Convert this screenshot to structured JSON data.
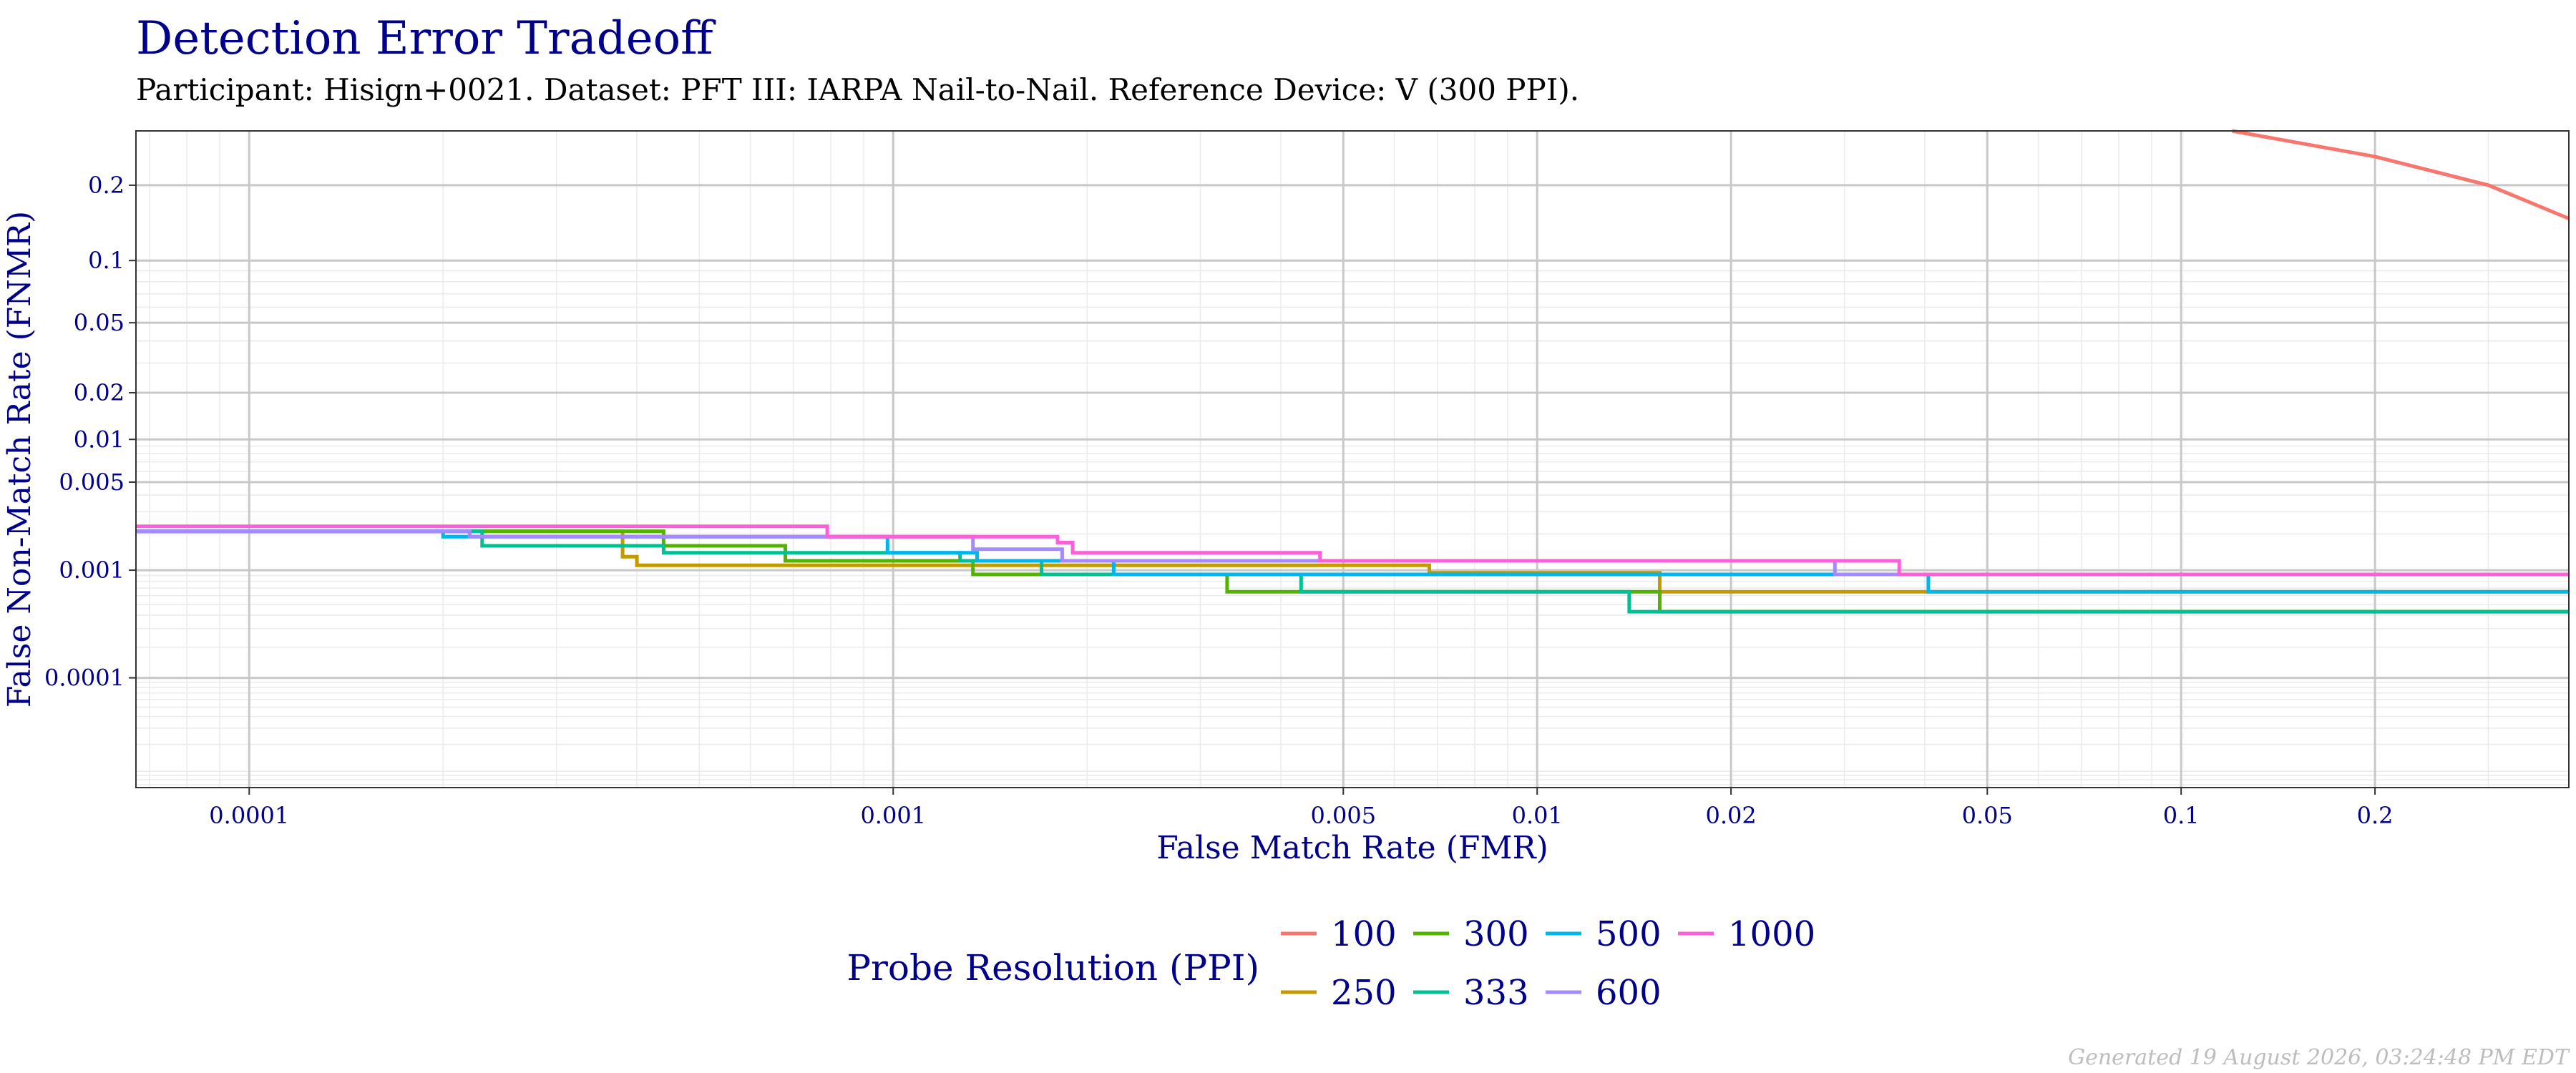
{
  "chart_data": {
    "type": "line",
    "title": "Detection Error Tradeoff",
    "subtitle": "Participant: Hisign+0021. Dataset: PFT III: IARPA Nail-to-Nail. Reference Device: V (300 PPI).",
    "xlabel": "False Match Rate (FMR)",
    "ylabel": "False Non-Match Rate (FNMR)",
    "x_scale": "log",
    "y_scale": "probit",
    "xlim": [
      6.67e-05,
      0.4
    ],
    "ylim": [
      6.5e-06,
      0.3
    ],
    "x_ticks": [
      {
        "value": 0.0001,
        "label": "0.0001"
      },
      {
        "value": 0.001,
        "label": "0.001"
      },
      {
        "value": 0.005,
        "label": "0.005"
      },
      {
        "value": 0.01,
        "label": "0.01"
      },
      {
        "value": 0.02,
        "label": "0.02"
      },
      {
        "value": 0.05,
        "label": "0.05"
      },
      {
        "value": 0.1,
        "label": "0.1"
      },
      {
        "value": 0.2,
        "label": "0.2"
      }
    ],
    "y_ticks": [
      {
        "value": 0.2,
        "label": "0.2"
      },
      {
        "value": 0.1,
        "label": "0.1"
      },
      {
        "value": 0.05,
        "label": "0.05"
      },
      {
        "value": 0.02,
        "label": "0.02"
      },
      {
        "value": 0.01,
        "label": "0.01"
      },
      {
        "value": 0.005,
        "label": "0.005"
      },
      {
        "value": 0.001,
        "label": "0.001"
      },
      {
        "value": 0.0001,
        "label": "0.0001"
      }
    ],
    "grid": true,
    "legend_title": "Probe Resolution (PPI)",
    "legend_position": "bottom",
    "series": [
      {
        "name": "100",
        "color": "#F8766D",
        "points": [
          [
            0.12,
            0.3
          ],
          [
            0.2,
            0.25
          ],
          [
            0.3,
            0.2
          ],
          [
            0.4,
            0.15
          ]
        ]
      },
      {
        "name": "250",
        "color": "#C49A00",
        "points": [
          [
            6.67e-05,
            0.0021
          ],
          [
            0.00038,
            0.0021
          ],
          [
            0.00038,
            0.0013
          ],
          [
            0.0004,
            0.0013
          ],
          [
            0.0004,
            0.0011
          ],
          [
            0.0068,
            0.0011
          ],
          [
            0.0068,
            0.00095
          ],
          [
            0.0155,
            0.00095
          ],
          [
            0.0155,
            0.00065
          ],
          [
            0.0405,
            0.00065
          ],
          [
            0.4,
            0.00065
          ]
        ]
      },
      {
        "name": "300",
        "color": "#53B400",
        "points": [
          [
            6.67e-05,
            0.0021
          ],
          [
            0.00044,
            0.0021
          ],
          [
            0.00044,
            0.0016
          ],
          [
            0.00068,
            0.0016
          ],
          [
            0.00068,
            0.0012
          ],
          [
            0.00133,
            0.0012
          ],
          [
            0.00133,
            0.00092
          ],
          [
            0.0033,
            0.00092
          ],
          [
            0.0033,
            0.00065
          ],
          [
            0.0155,
            0.00065
          ],
          [
            0.0155,
            0.00043
          ],
          [
            0.4,
            0.00043
          ]
        ]
      },
      {
        "name": "333",
        "color": "#00C094",
        "points": [
          [
            6.67e-05,
            0.0021
          ],
          [
            0.00023,
            0.0021
          ],
          [
            0.00023,
            0.0016
          ],
          [
            0.00044,
            0.0016
          ],
          [
            0.00044,
            0.0014
          ],
          [
            0.00127,
            0.0014
          ],
          [
            0.00127,
            0.0012
          ],
          [
            0.0017,
            0.0012
          ],
          [
            0.0017,
            0.00092
          ],
          [
            0.0043,
            0.00092
          ],
          [
            0.0043,
            0.00065
          ],
          [
            0.0139,
            0.00065
          ],
          [
            0.0139,
            0.00043
          ],
          [
            0.4,
            0.00043
          ]
        ]
      },
      {
        "name": "500",
        "color": "#00B6EB",
        "points": [
          [
            6.67e-05,
            0.0021
          ],
          [
            0.0002,
            0.0021
          ],
          [
            0.0002,
            0.0019
          ],
          [
            0.00098,
            0.0019
          ],
          [
            0.00098,
            0.0014
          ],
          [
            0.00135,
            0.0014
          ],
          [
            0.00135,
            0.0012
          ],
          [
            0.0022,
            0.0012
          ],
          [
            0.0022,
            0.00092
          ],
          [
            0.0405,
            0.00092
          ],
          [
            0.0405,
            0.00065
          ],
          [
            0.4,
            0.00065
          ]
        ]
      },
      {
        "name": "600",
        "color": "#A58AFF",
        "points": [
          [
            6.67e-05,
            0.0021
          ],
          [
            0.00022,
            0.0021
          ],
          [
            0.00022,
            0.0019
          ],
          [
            0.00133,
            0.0019
          ],
          [
            0.00133,
            0.0015
          ],
          [
            0.00183,
            0.0015
          ],
          [
            0.00183,
            0.0012
          ],
          [
            0.029,
            0.0012
          ],
          [
            0.029,
            0.00092
          ],
          [
            0.4,
            0.00092
          ]
        ]
      },
      {
        "name": "1000",
        "color": "#FB61D7",
        "points": [
          [
            6.67e-05,
            0.0023
          ],
          [
            0.00079,
            0.0023
          ],
          [
            0.00079,
            0.0019
          ],
          [
            0.0018,
            0.0019
          ],
          [
            0.0018,
            0.0017
          ],
          [
            0.0019,
            0.0017
          ],
          [
            0.0019,
            0.0014
          ],
          [
            0.0046,
            0.0014
          ],
          [
            0.0046,
            0.0012
          ],
          [
            0.0365,
            0.0012
          ],
          [
            0.0365,
            0.00092
          ],
          [
            0.4,
            0.00092
          ]
        ]
      }
    ]
  },
  "footer": {
    "generated": "Generated 19 August 2026, 03:24:48 PM EDT"
  },
  "colors": {
    "title": "#00008B",
    "axis_text": "#00008B",
    "grid_major": "#C8C8C8",
    "grid_minor": "#EBEBEB",
    "panel_border": "#333333"
  }
}
